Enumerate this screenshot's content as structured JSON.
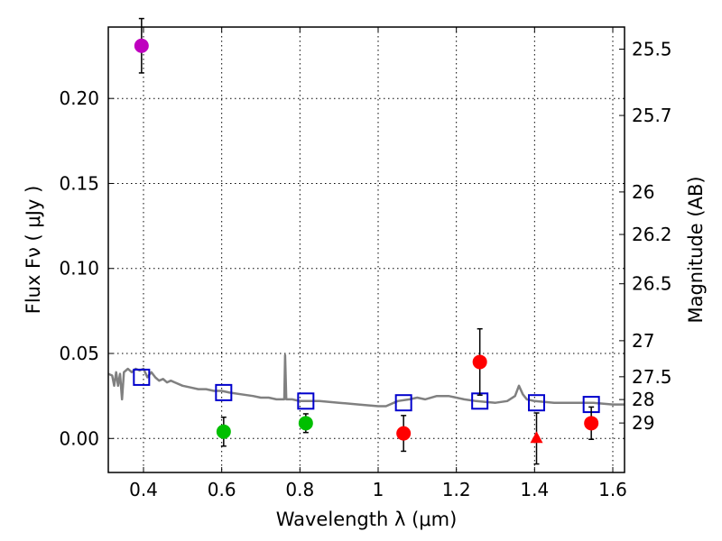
{
  "chart_data": {
    "type": "scatter",
    "xlabel": "Wavelength  λ (μm)",
    "ylabel_left": "Flux  Fν  ( μJy )",
    "ylabel_right": "Magnitude (AB)",
    "xlim": [
      0.31,
      1.63
    ],
    "ylim": [
      -0.02,
      0.242
    ],
    "xticks": [
      0.4,
      0.6,
      0.8,
      1.0,
      1.2,
      1.4,
      1.6
    ],
    "xtick_labels": [
      "0.4",
      "0.6",
      "0.8",
      "1",
      "1.2",
      "1.4",
      "1.6"
    ],
    "yticks": [
      0.0,
      0.05,
      0.1,
      0.15,
      0.2
    ],
    "ytick_labels": [
      "0.00",
      "0.05",
      "0.10",
      "0.15",
      "0.20"
    ],
    "right_ticks": [
      {
        "label": "25.5",
        "flux": 0.229
      },
      {
        "label": "25.7",
        "flux": 0.19
      },
      {
        "label": "26",
        "flux": 0.145
      },
      {
        "label": "26.2",
        "flux": 0.12
      },
      {
        "label": "26.5",
        "flux": 0.091
      },
      {
        "label": "27",
        "flux": 0.0575
      },
      {
        "label": "27.5",
        "flux": 0.0363
      },
      {
        "label": "28",
        "flux": 0.0229
      },
      {
        "label": "29",
        "flux": 0.0091
      }
    ],
    "grid": true,
    "series": [
      {
        "name": "model spectrum",
        "style": "line",
        "color": "#808080",
        "points": [
          [
            0.31,
            0.038
          ],
          [
            0.32,
            0.037
          ],
          [
            0.325,
            0.031
          ],
          [
            0.33,
            0.039
          ],
          [
            0.335,
            0.031
          ],
          [
            0.34,
            0.038
          ],
          [
            0.345,
            0.023
          ],
          [
            0.35,
            0.039
          ],
          [
            0.36,
            0.041
          ],
          [
            0.37,
            0.039
          ],
          [
            0.38,
            0.041
          ],
          [
            0.39,
            0.04
          ],
          [
            0.4,
            0.041
          ],
          [
            0.41,
            0.036
          ],
          [
            0.42,
            0.039
          ],
          [
            0.43,
            0.036
          ],
          [
            0.44,
            0.034
          ],
          [
            0.45,
            0.035
          ],
          [
            0.46,
            0.033
          ],
          [
            0.47,
            0.034
          ],
          [
            0.48,
            0.033
          ],
          [
            0.5,
            0.031
          ],
          [
            0.52,
            0.03
          ],
          [
            0.54,
            0.029
          ],
          [
            0.56,
            0.029
          ],
          [
            0.58,
            0.028
          ],
          [
            0.6,
            0.028
          ],
          [
            0.62,
            0.027
          ],
          [
            0.65,
            0.026
          ],
          [
            0.68,
            0.025
          ],
          [
            0.7,
            0.024
          ],
          [
            0.72,
            0.024
          ],
          [
            0.74,
            0.023
          ],
          [
            0.76,
            0.023
          ],
          [
            0.762,
            0.049
          ],
          [
            0.765,
            0.023
          ],
          [
            0.78,
            0.023
          ],
          [
            0.8,
            0.022
          ],
          [
            0.85,
            0.022
          ],
          [
            0.9,
            0.021
          ],
          [
            0.95,
            0.02
          ],
          [
            1.0,
            0.019
          ],
          [
            1.02,
            0.019
          ],
          [
            1.05,
            0.022
          ],
          [
            1.08,
            0.023
          ],
          [
            1.1,
            0.024
          ],
          [
            1.12,
            0.023
          ],
          [
            1.15,
            0.025
          ],
          [
            1.18,
            0.025
          ],
          [
            1.2,
            0.024
          ],
          [
            1.22,
            0.023
          ],
          [
            1.25,
            0.022
          ],
          [
            1.3,
            0.021
          ],
          [
            1.33,
            0.022
          ],
          [
            1.35,
            0.025
          ],
          [
            1.36,
            0.031
          ],
          [
            1.37,
            0.026
          ],
          [
            1.38,
            0.023
          ],
          [
            1.4,
            0.022
          ],
          [
            1.45,
            0.021
          ],
          [
            1.5,
            0.021
          ],
          [
            1.55,
            0.021
          ],
          [
            1.6,
            0.02
          ],
          [
            1.63,
            0.02
          ]
        ]
      },
      {
        "name": "model photometry",
        "style": "open-square",
        "color": "#0000cc",
        "points": [
          [
            0.395,
            0.036
          ],
          [
            0.605,
            0.027
          ],
          [
            0.815,
            0.022
          ],
          [
            1.065,
            0.021
          ],
          [
            1.26,
            0.022
          ],
          [
            1.405,
            0.021
          ],
          [
            1.545,
            0.02
          ]
        ]
      },
      {
        "name": "purple detection",
        "style": "circle",
        "color": "#bf00bf",
        "points": [
          [
            0.395,
            0.231,
            0.016
          ]
        ]
      },
      {
        "name": "green detections",
        "style": "circle",
        "color": "#00bf00",
        "points": [
          [
            0.605,
            0.004,
            0.0085
          ],
          [
            0.815,
            0.009,
            0.0055
          ]
        ]
      },
      {
        "name": "red detections",
        "style": "circle",
        "color": "#ff0000",
        "points": [
          [
            1.065,
            0.003,
            0.0105
          ],
          [
            1.26,
            0.045,
            0.0195
          ],
          [
            1.545,
            0.009,
            0.0095
          ]
        ]
      },
      {
        "name": "red upper limit",
        "style": "triangle",
        "color": "#ff0000",
        "points": [
          [
            1.405,
            0.0,
            0.015
          ]
        ]
      }
    ]
  }
}
